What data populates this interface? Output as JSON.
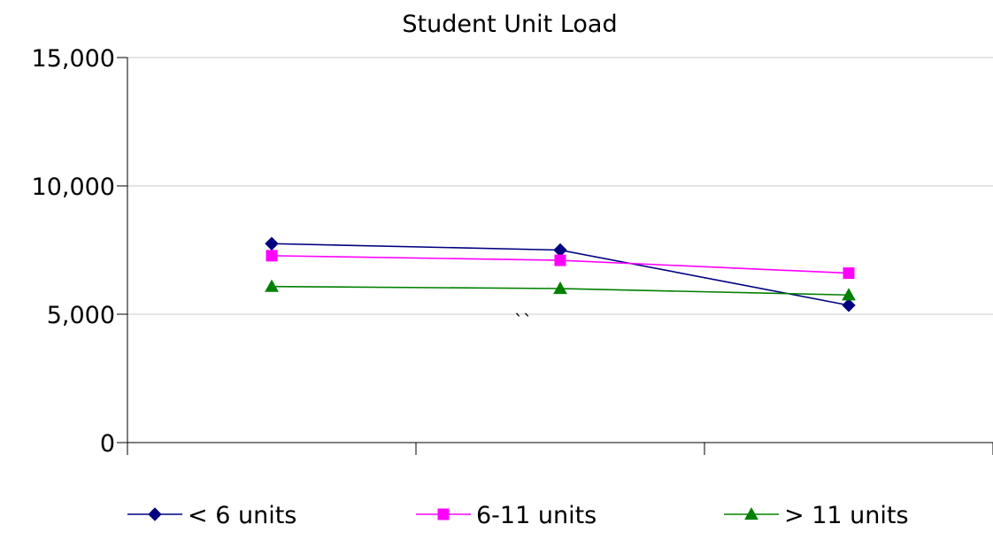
{
  "chart_data": {
    "type": "line",
    "title": "Student Unit Load",
    "xlabel": "",
    "ylabel": "",
    "categories": [
      "",
      "",
      ""
    ],
    "ylim": [
      0,
      15000
    ],
    "yticks": [
      {
        "value": 0,
        "label": "0"
      },
      {
        "value": 5000,
        "label": "5,000"
      },
      {
        "value": 10000,
        "label": "10,000"
      },
      {
        "value": 15000,
        "label": "15,000"
      }
    ],
    "grid": true,
    "legend_position": "bottom",
    "annotation": "``",
    "series": [
      {
        "name": "< 6 units",
        "color": "#000080",
        "marker": "diamond",
        "values": [
          7750,
          7500,
          5350
        ]
      },
      {
        "name": "6-11 units",
        "color": "#ff00ff",
        "marker": "square",
        "values": [
          7280,
          7100,
          6600
        ]
      },
      {
        "name": "> 11 units",
        "color": "#008000",
        "marker": "triangle",
        "values": [
          6080,
          6000,
          5750
        ]
      }
    ]
  }
}
